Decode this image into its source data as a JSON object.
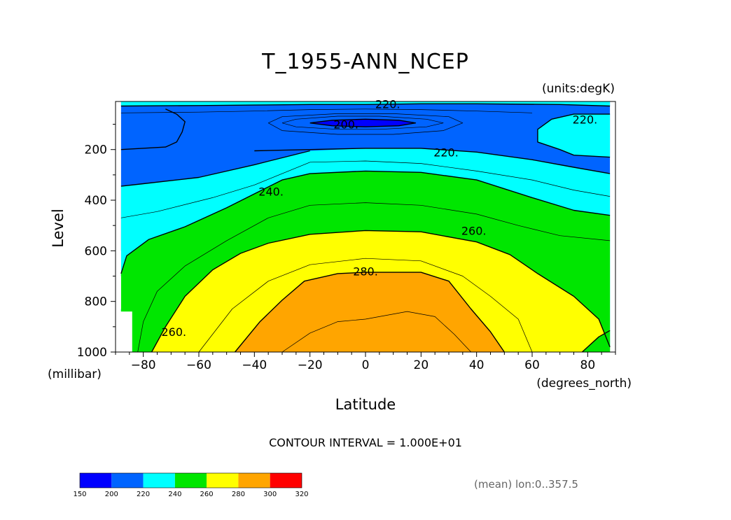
{
  "chart_data": {
    "type": "heatmap",
    "title": "T_1955-ANN_NCEP",
    "units_label": "(units:degK)",
    "xlabel": "Latitude",
    "ylabel": "Level",
    "x_units": "(degrees_north)",
    "y_units": "(millibar)",
    "xlim": [
      -90,
      90
    ],
    "ylim": [
      1000,
      10
    ],
    "x_ticks": [
      -80,
      -60,
      -40,
      -20,
      0,
      20,
      40,
      60,
      80
    ],
    "y_ticks": [
      200,
      400,
      600,
      800,
      1000
    ],
    "contour_interval_text": "CONTOUR INTERVAL = 1.000E+01",
    "footer_text": "(mean) lon:0..357.5",
    "contour_labels": [
      {
        "text": "220.",
        "lat": 8,
        "p": 20
      },
      {
        "text": "200.",
        "lat": -7,
        "p": 100
      },
      {
        "text": "220.",
        "lat": 79,
        "p": 80
      },
      {
        "text": "220.",
        "lat": 29,
        "p": 210
      },
      {
        "text": "240.",
        "lat": -34,
        "p": 365
      },
      {
        "text": "260.",
        "lat": 39,
        "p": 520
      },
      {
        "text": "280.",
        "lat": 0,
        "p": 680
      },
      {
        "text": "260.",
        "lat": -69,
        "p": 920
      }
    ],
    "levels": [
      150,
      200,
      220,
      240,
      260,
      280,
      300,
      320
    ],
    "colorbar": {
      "colors": [
        "#0000ff",
        "#0064ff",
        "#00ffff",
        "#00e600",
        "#ffff00",
        "#ffa500",
        "#ff0000"
      ],
      "labels": [
        "150",
        "200",
        "220",
        "240",
        "260",
        "280",
        "300",
        "320"
      ]
    },
    "regions": [
      {
        "color": "#0064ff",
        "points": [
          [
            -88,
            10
          ],
          [
            88,
            10
          ],
          [
            88,
            1000
          ],
          [
            -88,
            1000
          ]
        ]
      },
      {
        "color": "#00ffff",
        "points": [
          [
            -88,
            10
          ],
          [
            88,
            10
          ],
          [
            88,
            28
          ],
          [
            70,
            22
          ],
          [
            40,
            19
          ],
          [
            20,
            19
          ],
          [
            0,
            22
          ],
          [
            -20,
            22
          ],
          [
            -40,
            24
          ],
          [
            -60,
            26
          ],
          [
            -88,
            28
          ]
        ]
      },
      {
        "color": "#00ffff",
        "points": [
          [
            -88,
            345
          ],
          [
            -80,
            335
          ],
          [
            -60,
            310
          ],
          [
            -40,
            260
          ],
          [
            -20,
            205
          ],
          [
            0,
            195
          ],
          [
            20,
            195
          ],
          [
            40,
            210
          ],
          [
            60,
            240
          ],
          [
            75,
            270
          ],
          [
            88,
            295
          ],
          [
            88,
            1000
          ],
          [
            -88,
            1000
          ]
        ]
      },
      {
        "color": "#00ffff",
        "points": [
          [
            88,
            60
          ],
          [
            75,
            60
          ],
          [
            67,
            80
          ],
          [
            62,
            120
          ],
          [
            62,
            170
          ],
          [
            70,
            200
          ],
          [
            75,
            222
          ],
          [
            88,
            230
          ]
        ]
      },
      {
        "color": "#0000ff",
        "points": [
          [
            -20,
            95
          ],
          [
            -12,
            84
          ],
          [
            0,
            80
          ],
          [
            12,
            84
          ],
          [
            18,
            95
          ],
          [
            12,
            106
          ],
          [
            0,
            110
          ],
          [
            -12,
            106
          ]
        ]
      },
      {
        "color": "#00e600",
        "points": [
          [
            -88,
            690
          ],
          [
            -86,
            620
          ],
          [
            -78,
            555
          ],
          [
            -65,
            505
          ],
          [
            -50,
            430
          ],
          [
            -40,
            375
          ],
          [
            -30,
            320
          ],
          [
            -20,
            295
          ],
          [
            0,
            285
          ],
          [
            20,
            290
          ],
          [
            40,
            320
          ],
          [
            60,
            390
          ],
          [
            75,
            440
          ],
          [
            88,
            460
          ],
          [
            88,
            1000
          ],
          [
            -88,
            1000
          ]
        ]
      },
      {
        "color": "#ffff00",
        "points": [
          [
            -77,
            1000
          ],
          [
            -72,
            900
          ],
          [
            -65,
            780
          ],
          [
            -55,
            675
          ],
          [
            -45,
            610
          ],
          [
            -35,
            570
          ],
          [
            -20,
            535
          ],
          [
            0,
            520
          ],
          [
            20,
            525
          ],
          [
            40,
            565
          ],
          [
            52,
            615
          ],
          [
            62,
            690
          ],
          [
            75,
            780
          ],
          [
            84,
            870
          ],
          [
            88,
            980
          ],
          [
            88,
            1000
          ]
        ]
      },
      {
        "color": "#00e600",
        "points": [
          [
            78,
            1000
          ],
          [
            84,
            940
          ],
          [
            88,
            915
          ],
          [
            88,
            1000
          ]
        ]
      },
      {
        "color": "#ffa500",
        "points": [
          [
            -47,
            1000
          ],
          [
            -38,
            880
          ],
          [
            -30,
            795
          ],
          [
            -22,
            720
          ],
          [
            -10,
            690
          ],
          [
            0,
            685
          ],
          [
            20,
            685
          ],
          [
            30,
            720
          ],
          [
            38,
            830
          ],
          [
            45,
            920
          ],
          [
            50,
            1000
          ]
        ]
      }
    ],
    "missing_regions": [
      {
        "points": [
          [
            -90,
            600
          ],
          [
            -88,
            600
          ],
          [
            -88,
            690
          ],
          [
            -90,
            690
          ]
        ]
      },
      {
        "points": [
          [
            -90,
            700
          ],
          [
            -88,
            700
          ],
          [
            -88,
            830
          ],
          [
            -90,
            830
          ]
        ]
      },
      {
        "points": [
          [
            -90,
            840
          ],
          [
            -84,
            840
          ],
          [
            -84,
            1000
          ],
          [
            -90,
            1000
          ]
        ]
      }
    ],
    "contour_lines": [
      {
        "width": 1.4,
        "points": [
          [
            -88,
            28
          ],
          [
            -60,
            26
          ],
          [
            -40,
            24
          ],
          [
            -20,
            22
          ],
          [
            0,
            22
          ],
          [
            20,
            19
          ],
          [
            40,
            19
          ],
          [
            70,
            22
          ],
          [
            88,
            28
          ]
        ]
      },
      {
        "width": 0.7,
        "points": [
          [
            -88,
            55
          ],
          [
            -60,
            52
          ],
          [
            -40,
            48
          ],
          [
            -20,
            42
          ],
          [
            0,
            40
          ],
          [
            20,
            42
          ],
          [
            40,
            48
          ],
          [
            60,
            55
          ]
        ]
      },
      {
        "width": 0.7,
        "points": [
          [
            -30,
            95
          ],
          [
            -25,
            80
          ],
          [
            -10,
            68
          ],
          [
            5,
            68
          ],
          [
            22,
            80
          ],
          [
            28,
            95
          ],
          [
            22,
            110
          ],
          [
            5,
            120
          ],
          [
            -10,
            120
          ],
          [
            -25,
            110
          ],
          [
            -30,
            95
          ]
        ]
      },
      {
        "width": 0.7,
        "points": [
          [
            -35,
            95
          ],
          [
            -30,
            70
          ],
          [
            -10,
            58
          ],
          [
            10,
            58
          ],
          [
            30,
            70
          ],
          [
            35,
            95
          ],
          [
            28,
            125
          ],
          [
            10,
            140
          ],
          [
            -10,
            140
          ],
          [
            -30,
            125
          ],
          [
            -35,
            95
          ]
        ]
      },
      {
        "width": 1.4,
        "points": [
          [
            -20,
            95
          ],
          [
            -12,
            84
          ],
          [
            0,
            80
          ],
          [
            12,
            84
          ],
          [
            18,
            95
          ],
          [
            12,
            106
          ],
          [
            0,
            110
          ],
          [
            -12,
            106
          ],
          [
            -20,
            95
          ]
        ]
      },
      {
        "width": 1.4,
        "points": [
          [
            -88,
            200
          ],
          [
            -72,
            190
          ],
          [
            -68,
            170
          ],
          [
            -66,
            130
          ],
          [
            -65,
            90
          ],
          [
            -68,
            60
          ],
          [
            -72,
            40
          ]
        ]
      },
      {
        "width": 1.4,
        "points": [
          [
            -40,
            205
          ],
          [
            -20,
            200
          ],
          [
            0,
            195
          ],
          [
            20,
            195
          ],
          [
            40,
            210
          ],
          [
            60,
            240
          ],
          [
            75,
            270
          ],
          [
            88,
            295
          ]
        ]
      },
      {
        "width": 1.4,
        "points": [
          [
            88,
            60
          ],
          [
            75,
            60
          ],
          [
            67,
            80
          ],
          [
            62,
            120
          ],
          [
            62,
            170
          ],
          [
            70,
            200
          ],
          [
            75,
            222
          ],
          [
            88,
            230
          ]
        ]
      },
      {
        "width": 1.4,
        "points": [
          [
            -88,
            345
          ],
          [
            -80,
            335
          ],
          [
            -60,
            310
          ],
          [
            -40,
            260
          ],
          [
            -20,
            205
          ]
        ]
      },
      {
        "width": 0.7,
        "points": [
          [
            -88,
            470
          ],
          [
            -75,
            445
          ],
          [
            -55,
            390
          ],
          [
            -40,
            340
          ],
          [
            -20,
            250
          ],
          [
            0,
            245
          ],
          [
            20,
            255
          ],
          [
            40,
            285
          ],
          [
            60,
            320
          ],
          [
            75,
            360
          ],
          [
            88,
            385
          ]
        ]
      },
      {
        "width": 1.4,
        "points": [
          [
            -88,
            690
          ],
          [
            -86,
            620
          ],
          [
            -78,
            555
          ],
          [
            -65,
            505
          ],
          [
            -50,
            430
          ],
          [
            -40,
            375
          ],
          [
            -30,
            320
          ],
          [
            -20,
            295
          ],
          [
            0,
            285
          ],
          [
            20,
            290
          ],
          [
            40,
            320
          ],
          [
            60,
            390
          ],
          [
            75,
            440
          ],
          [
            88,
            460
          ]
        ]
      },
      {
        "width": 0.7,
        "points": [
          [
            -82,
            1000
          ],
          [
            -80,
            880
          ],
          [
            -75,
            760
          ],
          [
            -65,
            660
          ],
          [
            -50,
            560
          ],
          [
            -35,
            470
          ],
          [
            -20,
            420
          ],
          [
            0,
            410
          ],
          [
            20,
            420
          ],
          [
            40,
            455
          ],
          [
            55,
            500
          ],
          [
            70,
            540
          ],
          [
            88,
            560
          ]
        ]
      },
      {
        "width": 1.4,
        "points": [
          [
            -77,
            1000
          ],
          [
            -72,
            900
          ],
          [
            -65,
            780
          ],
          [
            -55,
            675
          ],
          [
            -45,
            610
          ],
          [
            -35,
            570
          ],
          [
            -20,
            535
          ],
          [
            0,
            520
          ],
          [
            20,
            525
          ],
          [
            40,
            565
          ],
          [
            52,
            615
          ],
          [
            62,
            690
          ],
          [
            75,
            780
          ],
          [
            84,
            870
          ],
          [
            88,
            980
          ]
        ]
      },
      {
        "width": 0.7,
        "points": [
          [
            -60,
            1000
          ],
          [
            -48,
            830
          ],
          [
            -35,
            720
          ],
          [
            -20,
            655
          ],
          [
            0,
            630
          ],
          [
            20,
            640
          ],
          [
            35,
            700
          ],
          [
            45,
            780
          ],
          [
            55,
            870
          ],
          [
            60,
            1000
          ]
        ]
      },
      {
        "width": 1.4,
        "points": [
          [
            -47,
            1000
          ],
          [
            -38,
            880
          ],
          [
            -30,
            795
          ],
          [
            -22,
            720
          ],
          [
            -10,
            690
          ],
          [
            0,
            685
          ],
          [
            20,
            685
          ],
          [
            30,
            720
          ],
          [
            38,
            830
          ],
          [
            45,
            920
          ],
          [
            50,
            1000
          ]
        ]
      },
      {
        "width": 0.7,
        "points": [
          [
            -30,
            1000
          ],
          [
            -20,
            925
          ],
          [
            -10,
            880
          ],
          [
            0,
            870
          ],
          [
            15,
            840
          ],
          [
            25,
            860
          ],
          [
            32,
            930
          ],
          [
            38,
            1000
          ]
        ]
      },
      {
        "width": 1.4,
        "points": [
          [
            78,
            1000
          ],
          [
            84,
            940
          ],
          [
            88,
            915
          ]
        ]
      }
    ]
  }
}
